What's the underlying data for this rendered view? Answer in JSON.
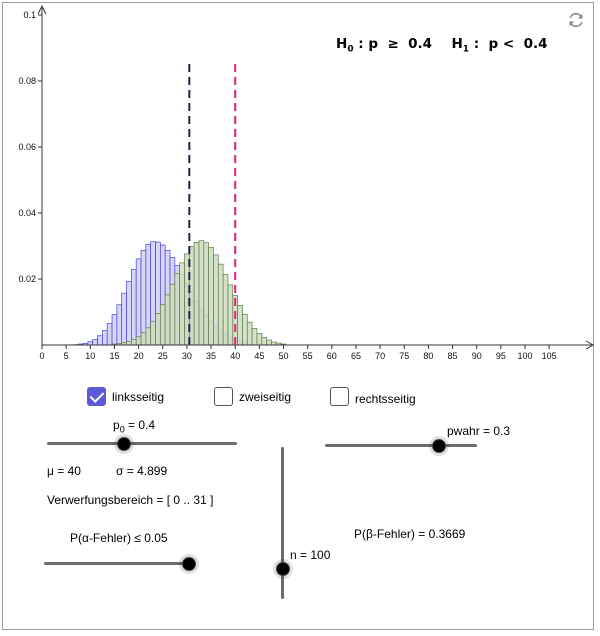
{
  "hypothesis": {
    "h0_symbol": "H",
    "h0_sub": "0",
    "h0_rest": " : p  ≥  0.4",
    "h1_symbol": "H",
    "h1_sub": "1",
    "h1_rest": " :  p <  0.4"
  },
  "toolbar": {
    "refresh_icon": "refresh-icon"
  },
  "options": [
    {
      "label": "linksseitig",
      "checked": true
    },
    {
      "label": "zweiseitig",
      "checked": false
    },
    {
      "label": "rechtsseitig",
      "checked": false
    }
  ],
  "sliders": {
    "p0": {
      "label_main": "p",
      "label_sub": "0",
      "label_rest": " = 0.4",
      "value": 0.4
    },
    "pwahr": {
      "label": "pwahr = 0.3",
      "value": 0.3
    },
    "alpha": {
      "label": "P(α-Fehler) ≤ 0.05",
      "value": 0.05
    },
    "n": {
      "label": "n = 100",
      "value": 100
    }
  },
  "stats": {
    "mu": "μ = 40",
    "sigma": "σ = 4.899",
    "rejection": "Verwerfungsbereich = [ 0 .. 31 ]",
    "beta": "P(β-Fehler) = 0.3669"
  },
  "colors": {
    "h0_fill": "#cfdcbf",
    "h0_stroke": "#5f7d4a",
    "h1_fill": "#c9c6f4",
    "h1_stroke": "#4b45d6",
    "mean_line": "#e0237f",
    "crit_line": "#222244",
    "accent": "#5c5ad8"
  },
  "chart_data": {
    "type": "bar",
    "n": 100,
    "p0": 0.4,
    "pwahr": 0.3,
    "critical_k": 31,
    "mean": 40,
    "x_ticks": [
      0,
      5,
      10,
      15,
      20,
      25,
      30,
      35,
      40,
      45,
      50,
      55,
      60,
      65,
      70,
      75,
      80,
      85,
      90,
      95,
      100,
      105
    ],
    "y_ticks": [
      "0.02",
      "0.04",
      "0.06",
      "0.08",
      "0.1"
    ],
    "xlim": [
      0,
      105
    ],
    "ylim": [
      0,
      0.1
    ],
    "series": [
      {
        "values": [
          0.0003,
          0.0004,
          0.0007,
          0.0011,
          0.0017,
          0.0025,
          0.0037,
          0.0052,
          0.0072,
          0.0095,
          0.0122,
          0.0152,
          0.0184,
          0.0217,
          0.0249,
          0.0276,
          0.0298,
          0.0311,
          0.0316,
          0.031,
          0.0296,
          0.0273,
          0.0245,
          0.0214,
          0.0182,
          0.015,
          0.012,
          0.0093,
          0.0069,
          0.005,
          0.0035,
          0.0023,
          0.0015,
          0.0009,
          0.0006,
          0.0003
        ],
        "x_start": 15
      },
      {
        "values": [
          0.0001,
          0.0003,
          0.0005,
          0.001,
          0.0017,
          0.0028,
          0.0044,
          0.0065,
          0.0092,
          0.0122,
          0.0157,
          0.0193,
          0.0229,
          0.0261,
          0.0287,
          0.0305,
          0.0313,
          0.0312,
          0.0303,
          0.0287,
          0.0265,
          0.0241,
          0.0214,
          0.0187,
          0.016,
          0.0134,
          0.0111,
          0.009,
          0.0072,
          0.0056,
          0.0043,
          0.0033,
          0.0024,
          0.0017,
          0.0012,
          0.0008
        ],
        "x_start": 7
      }
    ]
  }
}
